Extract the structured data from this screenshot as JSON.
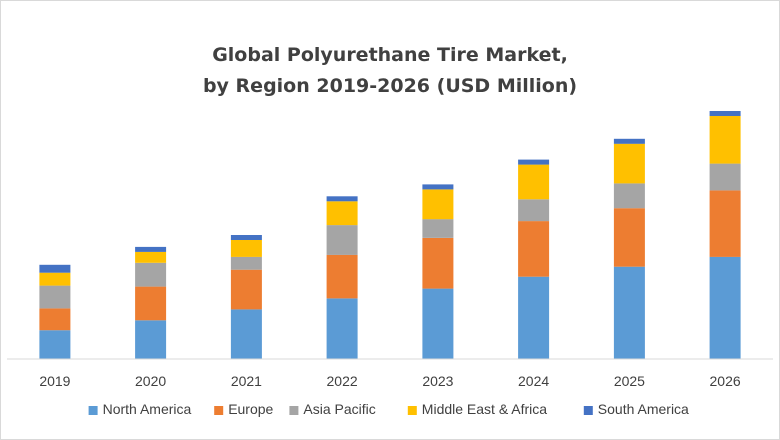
{
  "chart_data": {
    "type": "bar",
    "stacked": true,
    "title_lines": [
      "Global Polyurethane Tire Market,",
      "by Region 2019-2026 (USD Million)"
    ],
    "xlabel": "",
    "ylabel": "",
    "categories": [
      "2019",
      "2020",
      "2021",
      "2022",
      "2023",
      "2024",
      "2025",
      "2026"
    ],
    "ylim": [
      0,
      250
    ],
    "grid": false,
    "legend_position": "bottom",
    "series": [
      {
        "name": "North America",
        "color": "#5b9bd5",
        "values": [
          29,
          39,
          50,
          61,
          71,
          83,
          93,
          103
        ]
      },
      {
        "name": "Europe",
        "color": "#ed7d31",
        "values": [
          22,
          34,
          40,
          44,
          51,
          56,
          59,
          67
        ]
      },
      {
        "name": "Asia Pacific",
        "color": "#a5a5a5",
        "values": [
          23,
          24,
          13,
          30,
          19,
          22,
          25,
          27
        ]
      },
      {
        "name": "Middle East & Africa",
        "color": "#ffc000",
        "values": [
          13,
          11,
          17,
          24,
          30,
          35,
          40,
          48
        ]
      },
      {
        "name": "South America",
        "color": "#4472c4",
        "values": [
          8,
          5,
          5,
          5,
          5,
          5,
          5,
          5
        ]
      }
    ]
  }
}
